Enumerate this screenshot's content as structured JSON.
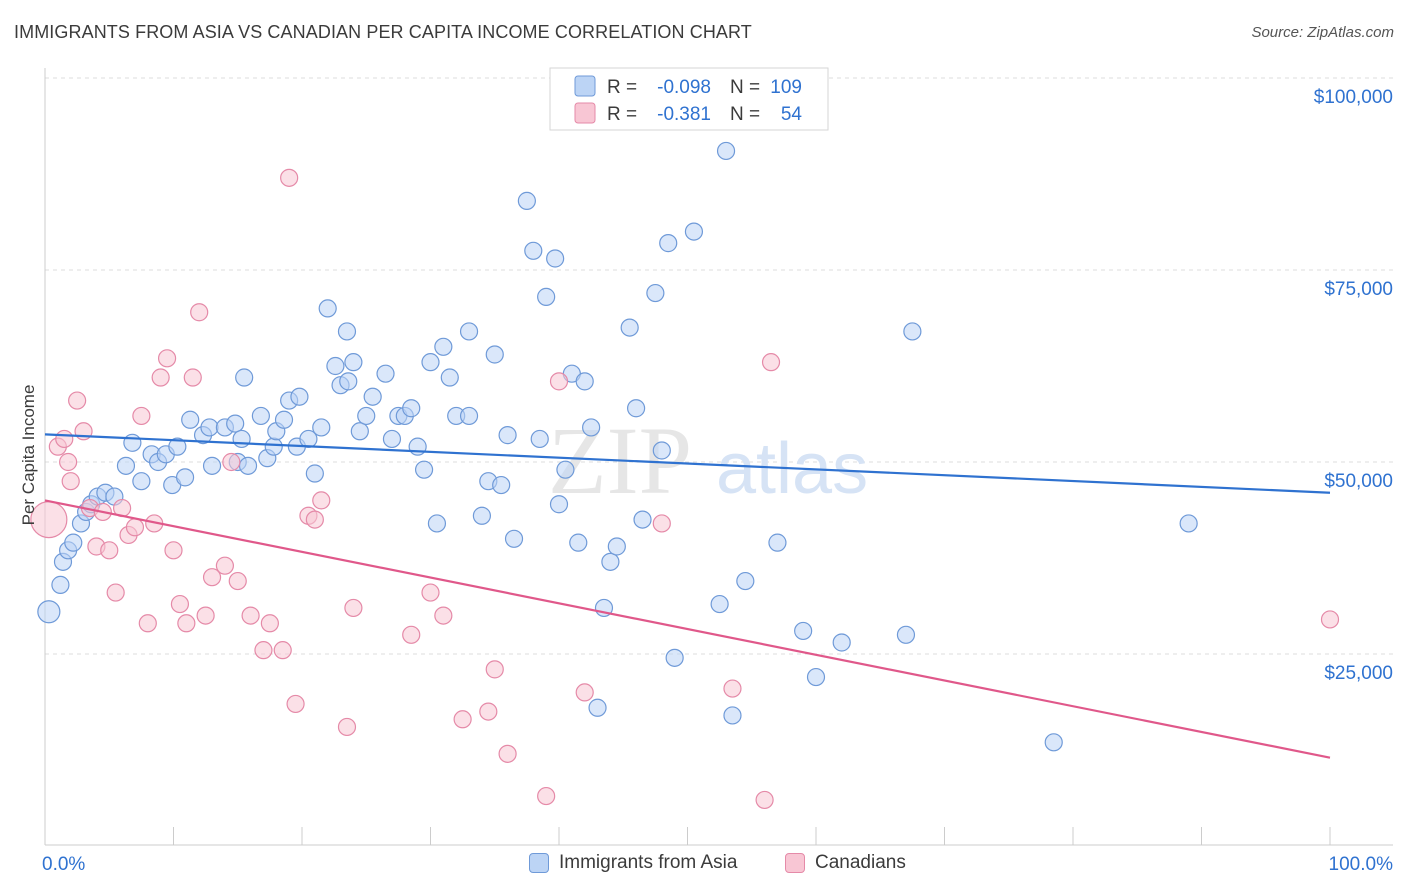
{
  "header": {
    "title": "IMMIGRANTS FROM ASIA VS CANADIAN PER CAPITA INCOME CORRELATION CHART",
    "source": "Source: ZipAtlas.com"
  },
  "watermark": {
    "zip": "ZIP",
    "atlas": "atlas"
  },
  "colors": {
    "blue_fill": "#bcd4f5",
    "blue_stroke": "#6f9ad8",
    "blue_line": "#2f72d0",
    "pink_fill": "#f8c6d4",
    "pink_stroke": "#e58aa8",
    "pink_line": "#e0588a",
    "value_text": "#2f72d0",
    "grid": "#dddddd"
  },
  "stats_legend": {
    "rows": [
      {
        "r_label": "R =",
        "r_value": "-0.098",
        "n_label": "N =",
        "n_value": "109"
      },
      {
        "r_label": "R =",
        "r_value": "-0.381",
        "n_label": "N =",
        "n_value": "54"
      }
    ]
  },
  "bottom_legend": {
    "items": [
      {
        "label": "Immigrants from Asia"
      },
      {
        "label": "Canadians"
      }
    ]
  },
  "chart_data": {
    "type": "scatter",
    "title": "IMMIGRANTS FROM ASIA VS CANADIAN PER CAPITA INCOME CORRELATION CHART",
    "xlabel": "",
    "ylabel": "Per Capita Income",
    "xlim": [
      0,
      100
    ],
    "ylim": [
      0,
      105000
    ],
    "x_tick_labels": [
      "0.0%",
      "100.0%"
    ],
    "y_ticks": [
      25000,
      50000,
      75000,
      100000
    ],
    "y_tick_labels": [
      "$25,000",
      "$50,000",
      "$75,000",
      "$100,000"
    ],
    "grid": true,
    "series": [
      {
        "name": "Immigrants from Asia",
        "r": -0.098,
        "n": 109,
        "trend": {
          "x": [
            0,
            100
          ],
          "y": [
            53600,
            46000
          ]
        },
        "points": [
          [
            0.3,
            30500
          ],
          [
            1.2,
            34000
          ],
          [
            1.4,
            37000
          ],
          [
            1.8,
            38500
          ],
          [
            2.2,
            39500
          ],
          [
            2.8,
            42000
          ],
          [
            3.2,
            43500
          ],
          [
            3.6,
            44500
          ],
          [
            4.1,
            45500
          ],
          [
            4.7,
            46000
          ],
          [
            5.4,
            45500
          ],
          [
            6.3,
            49500
          ],
          [
            6.8,
            52500
          ],
          [
            7.5,
            47500
          ],
          [
            8.3,
            51000
          ],
          [
            8.8,
            50000
          ],
          [
            9.4,
            51000
          ],
          [
            9.9,
            47000
          ],
          [
            10.3,
            52000
          ],
          [
            10.9,
            48000
          ],
          [
            11.3,
            55500
          ],
          [
            12.3,
            53500
          ],
          [
            12.8,
            54500
          ],
          [
            13.0,
            49500
          ],
          [
            14.0,
            54500
          ],
          [
            14.8,
            55000
          ],
          [
            15.0,
            50000
          ],
          [
            15.3,
            53000
          ],
          [
            15.5,
            61000
          ],
          [
            15.8,
            49500
          ],
          [
            16.8,
            56000
          ],
          [
            17.3,
            50500
          ],
          [
            17.8,
            52000
          ],
          [
            18.0,
            54000
          ],
          [
            18.6,
            55500
          ],
          [
            19.0,
            58000
          ],
          [
            19.6,
            52000
          ],
          [
            19.8,
            58500
          ],
          [
            20.5,
            53000
          ],
          [
            21.0,
            48500
          ],
          [
            21.5,
            54500
          ],
          [
            22.0,
            70000
          ],
          [
            22.6,
            62500
          ],
          [
            23.0,
            60000
          ],
          [
            23.5,
            67000
          ],
          [
            23.6,
            60500
          ],
          [
            24.0,
            63000
          ],
          [
            24.5,
            54000
          ],
          [
            25.0,
            56000
          ],
          [
            25.5,
            58500
          ],
          [
            26.5,
            61500
          ],
          [
            27.0,
            53000
          ],
          [
            27.5,
            56000
          ],
          [
            28.0,
            56000
          ],
          [
            28.5,
            57000
          ],
          [
            29.0,
            52000
          ],
          [
            29.5,
            49000
          ],
          [
            30.0,
            63000
          ],
          [
            30.5,
            42000
          ],
          [
            31.0,
            65000
          ],
          [
            31.5,
            61000
          ],
          [
            32.0,
            56000
          ],
          [
            33.0,
            67000
          ],
          [
            33.0,
            56000
          ],
          [
            34.0,
            43000
          ],
          [
            34.5,
            47500
          ],
          [
            35.0,
            64000
          ],
          [
            35.5,
            47000
          ],
          [
            36.0,
            53500
          ],
          [
            36.5,
            40000
          ],
          [
            37.5,
            84000
          ],
          [
            38.0,
            77500
          ],
          [
            38.5,
            53000
          ],
          [
            39.0,
            71500
          ],
          [
            39.7,
            76500
          ],
          [
            40.0,
            44500
          ],
          [
            40.5,
            49000
          ],
          [
            41.0,
            61500
          ],
          [
            41.5,
            39500
          ],
          [
            42.0,
            60500
          ],
          [
            42.5,
            54500
          ],
          [
            43.0,
            18000
          ],
          [
            43.5,
            31000
          ],
          [
            44.0,
            37000
          ],
          [
            44.5,
            39000
          ],
          [
            45.5,
            67500
          ],
          [
            46.0,
            57000
          ],
          [
            46.5,
            42500
          ],
          [
            47.5,
            72000
          ],
          [
            48.0,
            51500
          ],
          [
            48.5,
            78500
          ],
          [
            49.0,
            24500
          ],
          [
            50.5,
            80000
          ],
          [
            52.5,
            31500
          ],
          [
            53.0,
            90500
          ],
          [
            53.5,
            17000
          ],
          [
            54.5,
            34500
          ],
          [
            57.0,
            39500
          ],
          [
            59.0,
            28000
          ],
          [
            60.0,
            22000
          ],
          [
            62.0,
            26500
          ],
          [
            67.0,
            27500
          ],
          [
            67.5,
            67000
          ],
          [
            78.5,
            13500
          ],
          [
            89.0,
            42000
          ]
        ]
      },
      {
        "name": "Canadians",
        "r": -0.381,
        "n": 54,
        "trend": {
          "x": [
            0,
            100
          ],
          "y": [
            45000,
            11500
          ]
        },
        "points": [
          [
            0.3,
            42500
          ],
          [
            1.0,
            52000
          ],
          [
            1.5,
            53000
          ],
          [
            1.8,
            50000
          ],
          [
            2.0,
            47500
          ],
          [
            2.5,
            58000
          ],
          [
            3.0,
            54000
          ],
          [
            3.5,
            44000
          ],
          [
            4.0,
            39000
          ],
          [
            4.5,
            43500
          ],
          [
            5.0,
            38500
          ],
          [
            5.5,
            33000
          ],
          [
            6.0,
            44000
          ],
          [
            6.5,
            40500
          ],
          [
            7.0,
            41500
          ],
          [
            7.5,
            56000
          ],
          [
            8.0,
            29000
          ],
          [
            8.5,
            42000
          ],
          [
            9.0,
            61000
          ],
          [
            9.5,
            63500
          ],
          [
            10.0,
            38500
          ],
          [
            10.5,
            31500
          ],
          [
            11.0,
            29000
          ],
          [
            11.5,
            61000
          ],
          [
            12.0,
            69500
          ],
          [
            12.5,
            30000
          ],
          [
            13.0,
            35000
          ],
          [
            14.0,
            36500
          ],
          [
            14.5,
            50000
          ],
          [
            15.0,
            34500
          ],
          [
            16.0,
            30000
          ],
          [
            17.0,
            25500
          ],
          [
            17.5,
            29000
          ],
          [
            18.5,
            25500
          ],
          [
            19.0,
            87000
          ],
          [
            19.5,
            18500
          ],
          [
            20.5,
            43000
          ],
          [
            21.0,
            42500
          ],
          [
            21.5,
            45000
          ],
          [
            23.5,
            15500
          ],
          [
            24.0,
            31000
          ],
          [
            28.5,
            27500
          ],
          [
            30.0,
            33000
          ],
          [
            31.0,
            30000
          ],
          [
            32.5,
            16500
          ],
          [
            34.5,
            17500
          ],
          [
            35.0,
            23000
          ],
          [
            36.0,
            12000
          ],
          [
            39.0,
            6500
          ],
          [
            40.0,
            60500
          ],
          [
            42.0,
            20000
          ],
          [
            48.0,
            42000
          ],
          [
            53.5,
            20500
          ],
          [
            56.0,
            6000
          ],
          [
            56.5,
            63000
          ],
          [
            100.0,
            29500
          ]
        ]
      }
    ]
  }
}
